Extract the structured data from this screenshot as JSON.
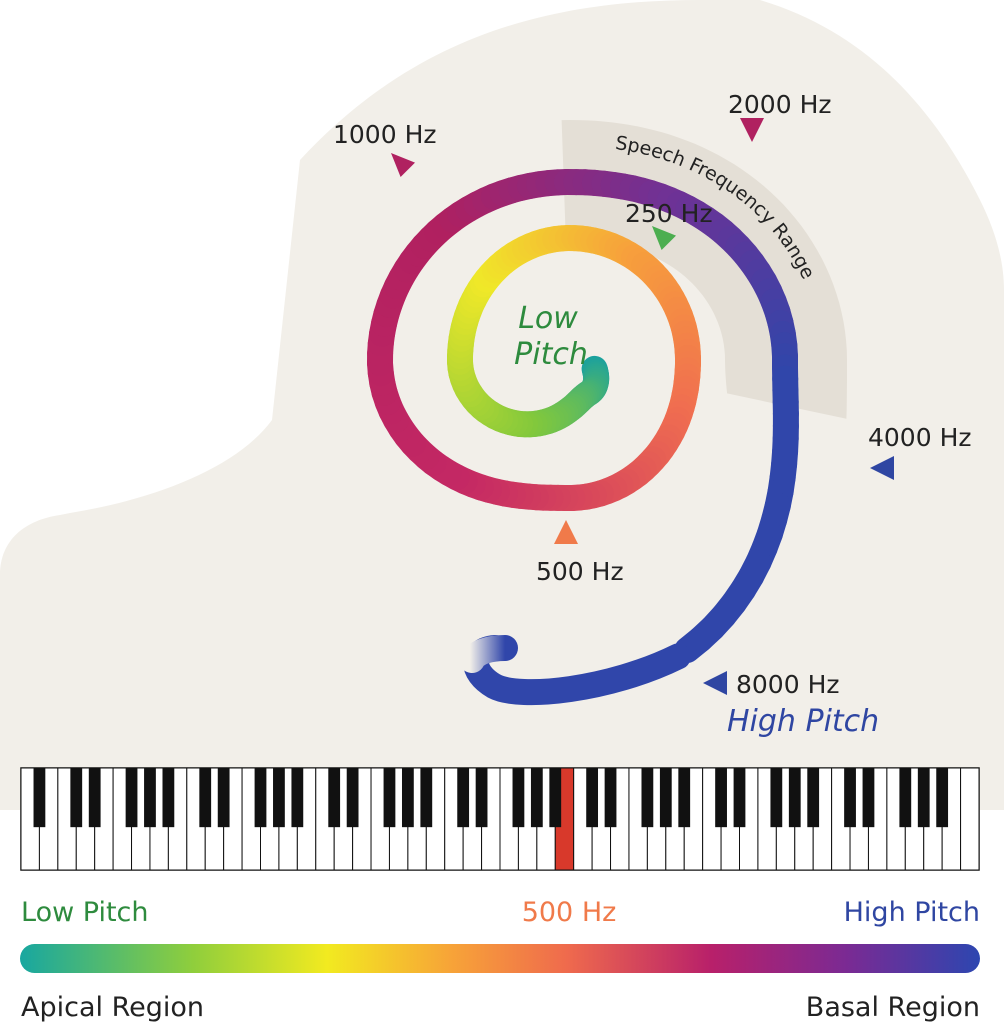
{
  "colors": {
    "background": "#f2efe9",
    "speech_band": "#e7e2da",
    "low_pitch_green": "#2e8b3e",
    "mid_orange": "#f07a4a",
    "high_pitch_blue": "#2f46a2",
    "highlight_key": "#d8392b"
  },
  "spiral": {
    "center_label_line1": "Low",
    "center_label_line2": "Pitch",
    "outer_label": "High Pitch",
    "band_label": "Speech Frequency Range",
    "markers": [
      {
        "label": "250 Hz",
        "color": "#4cae50",
        "icon": "triangle-marker"
      },
      {
        "label": "500 Hz",
        "color": "#f07a4a",
        "icon": "triangle-marker"
      },
      {
        "label": "1000 Hz",
        "color": "#b02160",
        "icon": "triangle-marker"
      },
      {
        "label": "2000 Hz",
        "color": "#b02160",
        "icon": "triangle-marker"
      },
      {
        "label": "4000 Hz",
        "color": "#2f46a2",
        "icon": "triangle-marker"
      },
      {
        "label": "8000 Hz",
        "color": "#2f46a2",
        "icon": "triangle-marker"
      }
    ]
  },
  "piano": {
    "white_keys": 52,
    "highlighted_key": "500 Hz"
  },
  "scale": {
    "left_label": "Low Pitch",
    "center_label": "500 Hz",
    "right_label": "High Pitch",
    "bottom_left": "Apical Region",
    "bottom_right": "Basal Region"
  }
}
